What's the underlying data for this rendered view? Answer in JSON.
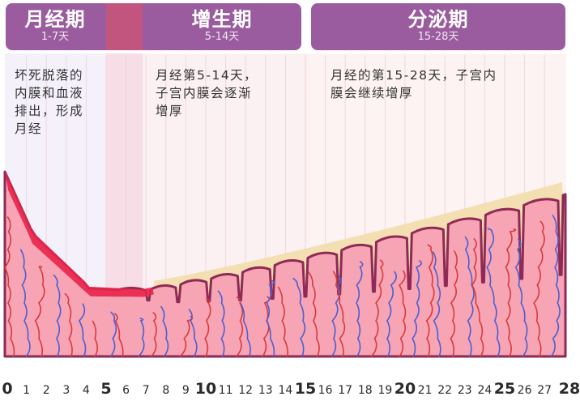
{
  "phases": [
    {
      "id": "menstrual",
      "title": "月经期",
      "range": "1-7天"
    },
    {
      "id": "proliferative",
      "title": "增生期",
      "range": "5-14天"
    },
    {
      "id": "secretory",
      "title": "分泌期",
      "range": "15-28天"
    }
  ],
  "descriptions": {
    "menstrual": [
      "坏死脱落的",
      "内膜和血液",
      "排出，形成",
      "月经"
    ],
    "proliferative": [
      "月经第5-14天，",
      "子宫内膜会逐渐",
      "增厚"
    ],
    "secretory": [
      "月经的第15-28天，子宫内",
      "膜会继续增厚"
    ]
  },
  "axis": {
    "ticks": [
      "0",
      "1",
      "2",
      "3",
      "4",
      "5",
      "6",
      "7",
      "8",
      "9",
      "10",
      "11",
      "12",
      "13",
      "14",
      "15",
      "16",
      "17",
      "18",
      "19",
      "20",
      "21",
      "22",
      "23",
      "24",
      "25",
      "26",
      "27",
      "28"
    ],
    "major": [
      "0",
      "5",
      "10",
      "15",
      "20",
      "25",
      "28"
    ]
  },
  "colors": {
    "phase_header": "#9a5c9e",
    "menstrual_bg": "#f4f1fa",
    "overlap_bg": "#f6dde6",
    "proliferative_bg": "#fbf0f2",
    "secretory_bg": "#fdf3f3",
    "tissue": "#f7a4b5",
    "tissue_outline": "#8e2a55",
    "blood": "#e8244a",
    "vessel_red": "#d93a3a",
    "vessel_blue": "#4b5fd0",
    "thickening": "#f3dfb2"
  }
}
